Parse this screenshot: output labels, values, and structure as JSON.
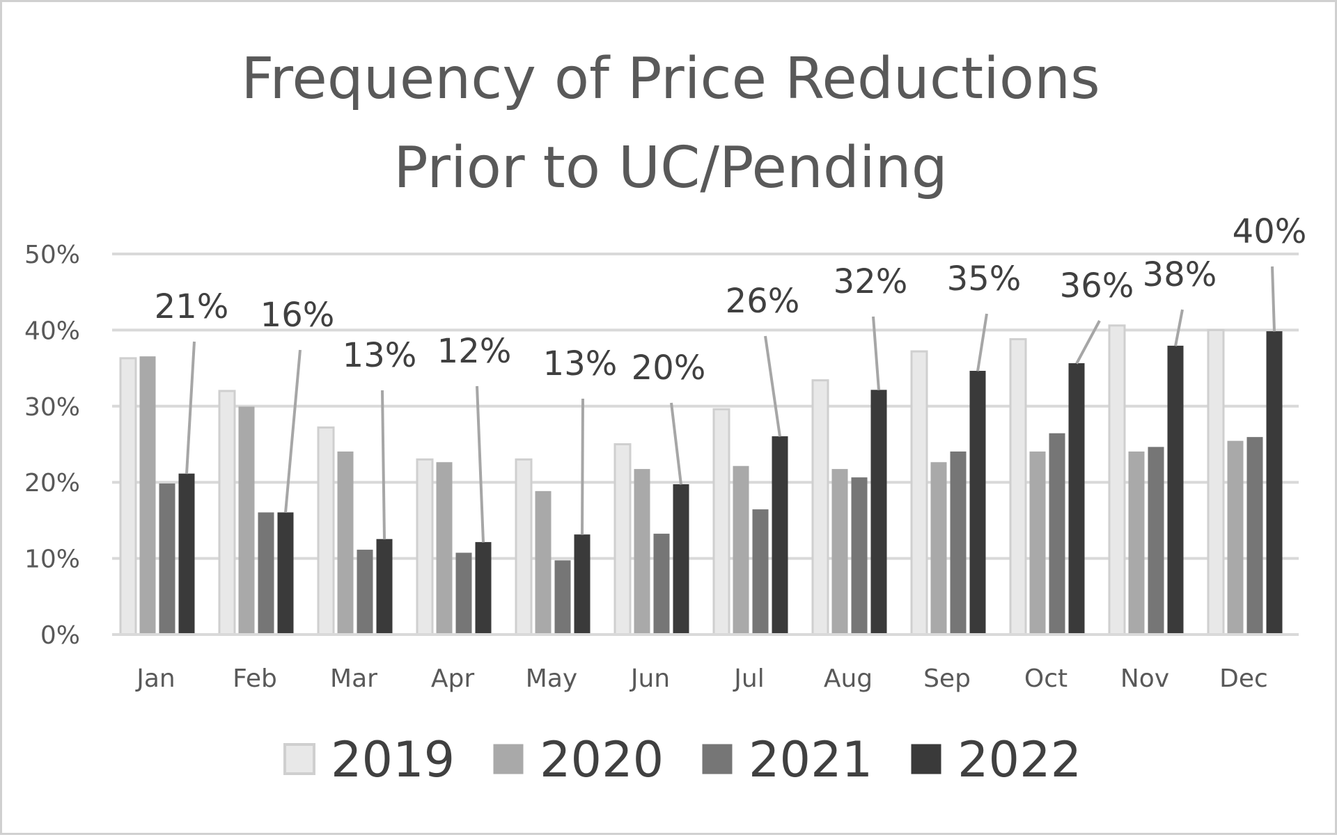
{
  "chart_data": {
    "type": "bar",
    "title_lines": [
      "Frequency of Price Reductions",
      "Prior to UC/Pending"
    ],
    "categories": [
      "Jan",
      "Feb",
      "Mar",
      "Apr",
      "May",
      "Jun",
      "Jul",
      "Aug",
      "Sep",
      "Oct",
      "Nov",
      "Dec"
    ],
    "series": [
      {
        "name": "2019",
        "color": "#e8e8e8",
        "stroke": "#cfcfcf",
        "values": [
          36.3,
          32.0,
          27.2,
          23.0,
          23.0,
          25.0,
          29.6,
          33.4,
          37.2,
          38.8,
          40.6,
          40.0
        ]
      },
      {
        "name": "2020",
        "color": "#a9a9a9",
        "stroke": "#a9a9a9",
        "values": [
          36.5,
          29.9,
          24.0,
          22.6,
          18.8,
          21.7,
          22.1,
          21.7,
          22.6,
          24.0,
          24.0,
          25.4
        ]
      },
      {
        "name": "2021",
        "color": "#767676",
        "stroke": "#767676",
        "values": [
          19.8,
          16.0,
          11.1,
          10.7,
          9.7,
          13.2,
          16.4,
          20.6,
          24.0,
          26.4,
          24.6,
          25.9
        ]
      },
      {
        "name": "2022",
        "color": "#3a3a3a",
        "stroke": "#3a3a3a",
        "values": [
          21.1,
          16.0,
          12.5,
          12.1,
          13.1,
          19.7,
          26.0,
          32.1,
          34.6,
          35.6,
          37.9,
          39.8
        ]
      }
    ],
    "data_labels_series": "2022",
    "data_labels": [
      "21%",
      "16%",
      "13%",
      "12%",
      "13%",
      "20%",
      "26%",
      "32%",
      "35%",
      "36%",
      "38%",
      "40%"
    ],
    "yticks": [
      0,
      10,
      20,
      30,
      40,
      50
    ],
    "ytick_labels": [
      "0%",
      "10%",
      "20%",
      "30%",
      "40%",
      "50%"
    ],
    "ylim": [
      0,
      50
    ],
    "grid": true,
    "legend_position": "bottom",
    "xlabel": "",
    "ylabel": ""
  }
}
